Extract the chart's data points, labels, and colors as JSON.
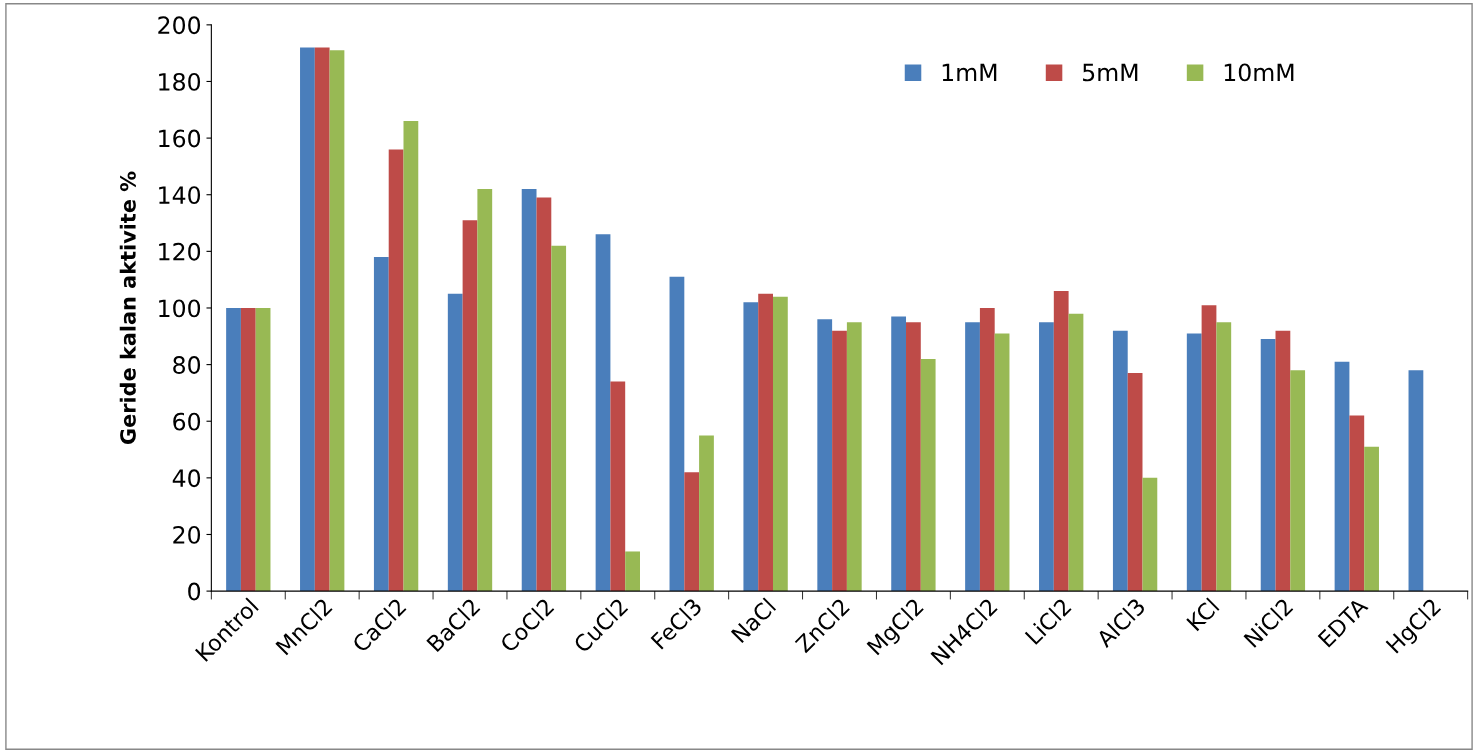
{
  "chart_data": {
    "type": "bar",
    "ylabel": "Geride kalan aktivite %",
    "categories": [
      "Kontrol",
      "MnCl2",
      "CaCl2",
      "BaCl2",
      "CoCl2",
      "CuCl2",
      "FeCl3",
      "NaCl",
      "ZnCl2",
      "MgCl2",
      "NH4Cl2",
      "LiCl2",
      "AlCl3",
      "KCl",
      "NiCl2",
      "EDTA",
      "HgCl2"
    ],
    "series": [
      {
        "name": "1mM",
        "color": "#4a7ebb",
        "values": [
          100,
          192,
          118,
          105,
          142,
          126,
          111,
          102,
          96,
          97,
          95,
          95,
          92,
          91,
          89,
          81,
          78
        ]
      },
      {
        "name": "5mM",
        "color": "#be4b48",
        "values": [
          100,
          192,
          156,
          131,
          139,
          74,
          42,
          105,
          92,
          95,
          100,
          106,
          77,
          101,
          92,
          62,
          null
        ]
      },
      {
        "name": "10mM",
        "color": "#98b954",
        "values": [
          100,
          191,
          166,
          142,
          122,
          14,
          55,
          104,
          95,
          82,
          91,
          98,
          40,
          95,
          78,
          51,
          null
        ]
      }
    ],
    "ylim": [
      0,
      200
    ],
    "yticks": [
      0,
      20,
      40,
      60,
      80,
      100,
      120,
      140,
      160,
      180,
      200
    ],
    "grid": false,
    "legend": "top right"
  }
}
